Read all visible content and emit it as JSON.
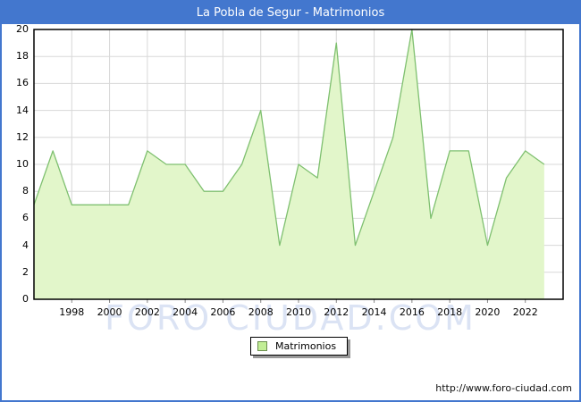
{
  "window": {
    "title": "La Pobla de Segur - Matrimonios"
  },
  "watermark": "FORO CIUDAD.COM",
  "legend": {
    "label": "Matrimonios"
  },
  "footer": {
    "url": "http://www.foro-ciudad.com"
  },
  "colors": {
    "titlebar": "#4377ce",
    "frame_border": "#4377ce",
    "area_fill": "#e2f6ca",
    "line": "#7fc070",
    "grid": "#d8d8d8",
    "plot_border": "#000000",
    "watermark": "#dbe3f4",
    "legend_swatch_fill": "#c2ee96",
    "legend_swatch_border": "#6b8f4e"
  },
  "chart_data": {
    "type": "area",
    "title": "La Pobla de Segur - Matrimonios",
    "xlabel": "",
    "ylabel": "",
    "x": [
      1996,
      1997,
      1998,
      1999,
      2000,
      2001,
      2002,
      2003,
      2004,
      2005,
      2006,
      2007,
      2008,
      2009,
      2010,
      2011,
      2012,
      2013,
      2014,
      2015,
      2016,
      2017,
      2018,
      2019,
      2020,
      2021,
      2022,
      2023
    ],
    "values": [
      7,
      11,
      7,
      7,
      7,
      7,
      11,
      10,
      10,
      8,
      8,
      10,
      14,
      4,
      10,
      9,
      19,
      4,
      8,
      12,
      20,
      6,
      11,
      11,
      4,
      9,
      11,
      10
    ],
    "series_name": "Matrimonios",
    "xlim": [
      1996,
      2024
    ],
    "ylim": [
      0,
      20
    ],
    "y_ticks": [
      0,
      2,
      4,
      6,
      8,
      10,
      12,
      14,
      16,
      18,
      20
    ],
    "x_ticks": [
      1998,
      2000,
      2002,
      2004,
      2006,
      2008,
      2010,
      2012,
      2014,
      2016,
      2018,
      2020,
      2022
    ],
    "grid": true,
    "legend_position": "bottom-center"
  }
}
